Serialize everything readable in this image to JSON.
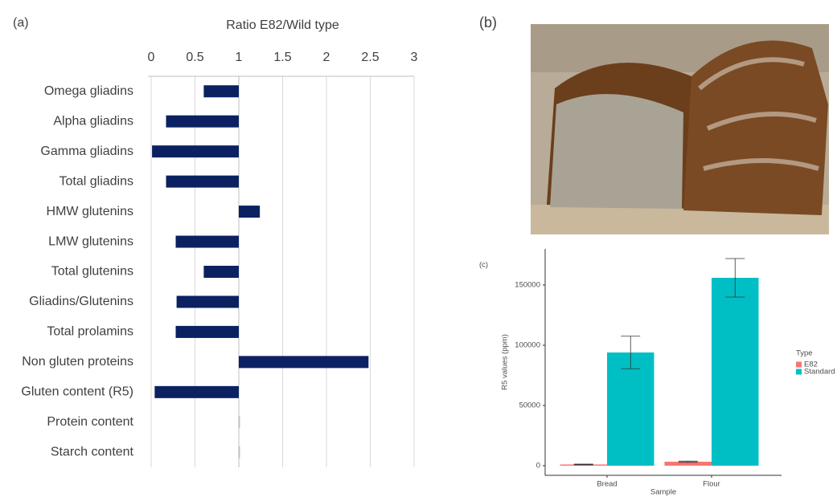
{
  "photo": {
    "label": "(b)"
  },
  "chart_data": [
    {
      "type": "bar",
      "orientation": "horizontal",
      "label": "(a)",
      "title": "Ratio E82/Wild type",
      "categories": [
        "Omega gliadins",
        "Alpha gliadins",
        "Gamma gliadins",
        "Total gliadins",
        "HMW glutenins",
        "LMW glutenins",
        "Total glutenins",
        "Gliadins/Glutenins",
        "Total prolamins",
        "Non gluten proteins",
        "Gluten content (R5)",
        "Protein content",
        "Starch content"
      ],
      "values": [
        0.6,
        0.17,
        0.01,
        0.17,
        1.24,
        0.28,
        0.6,
        0.29,
        0.28,
        2.48,
        0.04,
        1.0,
        1.0
      ],
      "baseline": 1,
      "color": "#0b2161",
      "xlim": [
        0,
        3
      ],
      "xticks": [
        0,
        0.5,
        1,
        1.5,
        2,
        2.5,
        3
      ],
      "grid": true
    },
    {
      "type": "bar",
      "orientation": "vertical",
      "label": "(c)",
      "x_label": "Sample",
      "y_label": "R5 values (ppm)",
      "legend_title": "Type",
      "categories": [
        "Bread",
        "Flour"
      ],
      "series": [
        {
          "name": "E82",
          "color": "#f8766d",
          "values": [
            1000,
            3300
          ],
          "errors": [
            300,
            500
          ]
        },
        {
          "name": "Standard",
          "color": "#00bfc4",
          "values": [
            94000,
            156000
          ],
          "errors": [
            13500,
            16000
          ]
        }
      ],
      "ylim": [
        -8000,
        180000
      ],
      "yticks": [
        0,
        50000,
        100000,
        150000
      ],
      "grid": false,
      "legend": "right"
    }
  ]
}
